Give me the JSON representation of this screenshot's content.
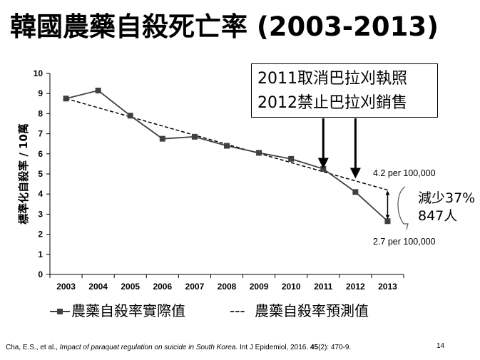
{
  "slide": {
    "title": "韓國農藥自殺死亡率 (2003-2013)",
    "annotation_lines": [
      "2011取消巴拉刈執照",
      "2012禁止巴拉刈銷售"
    ],
    "reduction_label_line1": "減少37%",
    "reduction_label_line2": "847人",
    "predicted_label": "4.2 per 100,000",
    "actual_label": "2.7 per 100,000",
    "citation": {
      "authors": "Cha, E.S., et al., ",
      "title": "Impact of paraquat regulation on suicide in South Korea.",
      "journal": " Int J Epidemiol, 2016. ",
      "volume": "45",
      "pages": "(2): 470-9."
    },
    "page_number": "14"
  },
  "chart_data": {
    "type": "line",
    "x": [
      2003,
      2004,
      2005,
      2006,
      2007,
      2008,
      2009,
      2010,
      2011,
      2012,
      2013
    ],
    "series": [
      {
        "name": "農藥自殺率實際值",
        "style": "solid-square",
        "color": "#404040",
        "values": [
          8.75,
          9.15,
          7.9,
          6.75,
          6.85,
          6.4,
          6.05,
          5.75,
          5.25,
          4.1,
          2.65
        ]
      },
      {
        "name": "農藥自殺率預測值",
        "style": "dashed",
        "color": "#000000",
        "values": [
          8.75,
          null,
          null,
          null,
          null,
          null,
          null,
          null,
          null,
          null,
          4.2
        ]
      }
    ],
    "legend": [
      {
        "marker": "-■-",
        "label": "農藥自殺率實際值"
      },
      {
        "marker": "---",
        "label": "農藥自殺率預測值"
      }
    ],
    "ylabel": "標準化自殺率 / 10萬",
    "ylim": [
      0,
      10
    ],
    "yticks": [
      0,
      1,
      2,
      3,
      4,
      5,
      6,
      7,
      8,
      9,
      10
    ],
    "grid": false,
    "legend_position": "bottom",
    "arrows_at": [
      2011,
      2012
    ]
  }
}
